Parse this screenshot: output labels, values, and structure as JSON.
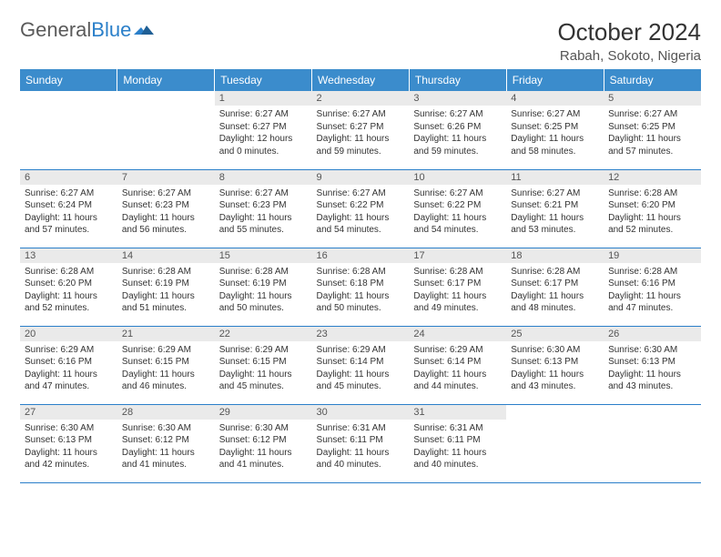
{
  "logo": {
    "text1": "General",
    "text2": "Blue"
  },
  "title": "October 2024",
  "location": "Rabah, Sokoto, Nigeria",
  "colors": {
    "header_bg": "#3b8ccc",
    "header_text": "#ffffff",
    "daynum_bg": "#eaeaea",
    "border": "#2a7fc9",
    "logo_gray": "#5a5a5a",
    "logo_blue": "#2a7fc9"
  },
  "day_headers": [
    "Sunday",
    "Monday",
    "Tuesday",
    "Wednesday",
    "Thursday",
    "Friday",
    "Saturday"
  ],
  "weeks": [
    [
      {
        "n": "",
        "sr": "",
        "ss": "",
        "dl": ""
      },
      {
        "n": "",
        "sr": "",
        "ss": "",
        "dl": ""
      },
      {
        "n": "1",
        "sr": "Sunrise: 6:27 AM",
        "ss": "Sunset: 6:27 PM",
        "dl": "Daylight: 12 hours and 0 minutes."
      },
      {
        "n": "2",
        "sr": "Sunrise: 6:27 AM",
        "ss": "Sunset: 6:27 PM",
        "dl": "Daylight: 11 hours and 59 minutes."
      },
      {
        "n": "3",
        "sr": "Sunrise: 6:27 AM",
        "ss": "Sunset: 6:26 PM",
        "dl": "Daylight: 11 hours and 59 minutes."
      },
      {
        "n": "4",
        "sr": "Sunrise: 6:27 AM",
        "ss": "Sunset: 6:25 PM",
        "dl": "Daylight: 11 hours and 58 minutes."
      },
      {
        "n": "5",
        "sr": "Sunrise: 6:27 AM",
        "ss": "Sunset: 6:25 PM",
        "dl": "Daylight: 11 hours and 57 minutes."
      }
    ],
    [
      {
        "n": "6",
        "sr": "Sunrise: 6:27 AM",
        "ss": "Sunset: 6:24 PM",
        "dl": "Daylight: 11 hours and 57 minutes."
      },
      {
        "n": "7",
        "sr": "Sunrise: 6:27 AM",
        "ss": "Sunset: 6:23 PM",
        "dl": "Daylight: 11 hours and 56 minutes."
      },
      {
        "n": "8",
        "sr": "Sunrise: 6:27 AM",
        "ss": "Sunset: 6:23 PM",
        "dl": "Daylight: 11 hours and 55 minutes."
      },
      {
        "n": "9",
        "sr": "Sunrise: 6:27 AM",
        "ss": "Sunset: 6:22 PM",
        "dl": "Daylight: 11 hours and 54 minutes."
      },
      {
        "n": "10",
        "sr": "Sunrise: 6:27 AM",
        "ss": "Sunset: 6:22 PM",
        "dl": "Daylight: 11 hours and 54 minutes."
      },
      {
        "n": "11",
        "sr": "Sunrise: 6:27 AM",
        "ss": "Sunset: 6:21 PM",
        "dl": "Daylight: 11 hours and 53 minutes."
      },
      {
        "n": "12",
        "sr": "Sunrise: 6:28 AM",
        "ss": "Sunset: 6:20 PM",
        "dl": "Daylight: 11 hours and 52 minutes."
      }
    ],
    [
      {
        "n": "13",
        "sr": "Sunrise: 6:28 AM",
        "ss": "Sunset: 6:20 PM",
        "dl": "Daylight: 11 hours and 52 minutes."
      },
      {
        "n": "14",
        "sr": "Sunrise: 6:28 AM",
        "ss": "Sunset: 6:19 PM",
        "dl": "Daylight: 11 hours and 51 minutes."
      },
      {
        "n": "15",
        "sr": "Sunrise: 6:28 AM",
        "ss": "Sunset: 6:19 PM",
        "dl": "Daylight: 11 hours and 50 minutes."
      },
      {
        "n": "16",
        "sr": "Sunrise: 6:28 AM",
        "ss": "Sunset: 6:18 PM",
        "dl": "Daylight: 11 hours and 50 minutes."
      },
      {
        "n": "17",
        "sr": "Sunrise: 6:28 AM",
        "ss": "Sunset: 6:17 PM",
        "dl": "Daylight: 11 hours and 49 minutes."
      },
      {
        "n": "18",
        "sr": "Sunrise: 6:28 AM",
        "ss": "Sunset: 6:17 PM",
        "dl": "Daylight: 11 hours and 48 minutes."
      },
      {
        "n": "19",
        "sr": "Sunrise: 6:28 AM",
        "ss": "Sunset: 6:16 PM",
        "dl": "Daylight: 11 hours and 47 minutes."
      }
    ],
    [
      {
        "n": "20",
        "sr": "Sunrise: 6:29 AM",
        "ss": "Sunset: 6:16 PM",
        "dl": "Daylight: 11 hours and 47 minutes."
      },
      {
        "n": "21",
        "sr": "Sunrise: 6:29 AM",
        "ss": "Sunset: 6:15 PM",
        "dl": "Daylight: 11 hours and 46 minutes."
      },
      {
        "n": "22",
        "sr": "Sunrise: 6:29 AM",
        "ss": "Sunset: 6:15 PM",
        "dl": "Daylight: 11 hours and 45 minutes."
      },
      {
        "n": "23",
        "sr": "Sunrise: 6:29 AM",
        "ss": "Sunset: 6:14 PM",
        "dl": "Daylight: 11 hours and 45 minutes."
      },
      {
        "n": "24",
        "sr": "Sunrise: 6:29 AM",
        "ss": "Sunset: 6:14 PM",
        "dl": "Daylight: 11 hours and 44 minutes."
      },
      {
        "n": "25",
        "sr": "Sunrise: 6:30 AM",
        "ss": "Sunset: 6:13 PM",
        "dl": "Daylight: 11 hours and 43 minutes."
      },
      {
        "n": "26",
        "sr": "Sunrise: 6:30 AM",
        "ss": "Sunset: 6:13 PM",
        "dl": "Daylight: 11 hours and 43 minutes."
      }
    ],
    [
      {
        "n": "27",
        "sr": "Sunrise: 6:30 AM",
        "ss": "Sunset: 6:13 PM",
        "dl": "Daylight: 11 hours and 42 minutes."
      },
      {
        "n": "28",
        "sr": "Sunrise: 6:30 AM",
        "ss": "Sunset: 6:12 PM",
        "dl": "Daylight: 11 hours and 41 minutes."
      },
      {
        "n": "29",
        "sr": "Sunrise: 6:30 AM",
        "ss": "Sunset: 6:12 PM",
        "dl": "Daylight: 11 hours and 41 minutes."
      },
      {
        "n": "30",
        "sr": "Sunrise: 6:31 AM",
        "ss": "Sunset: 6:11 PM",
        "dl": "Daylight: 11 hours and 40 minutes."
      },
      {
        "n": "31",
        "sr": "Sunrise: 6:31 AM",
        "ss": "Sunset: 6:11 PM",
        "dl": "Daylight: 11 hours and 40 minutes."
      },
      {
        "n": "",
        "sr": "",
        "ss": "",
        "dl": ""
      },
      {
        "n": "",
        "sr": "",
        "ss": "",
        "dl": ""
      }
    ]
  ]
}
